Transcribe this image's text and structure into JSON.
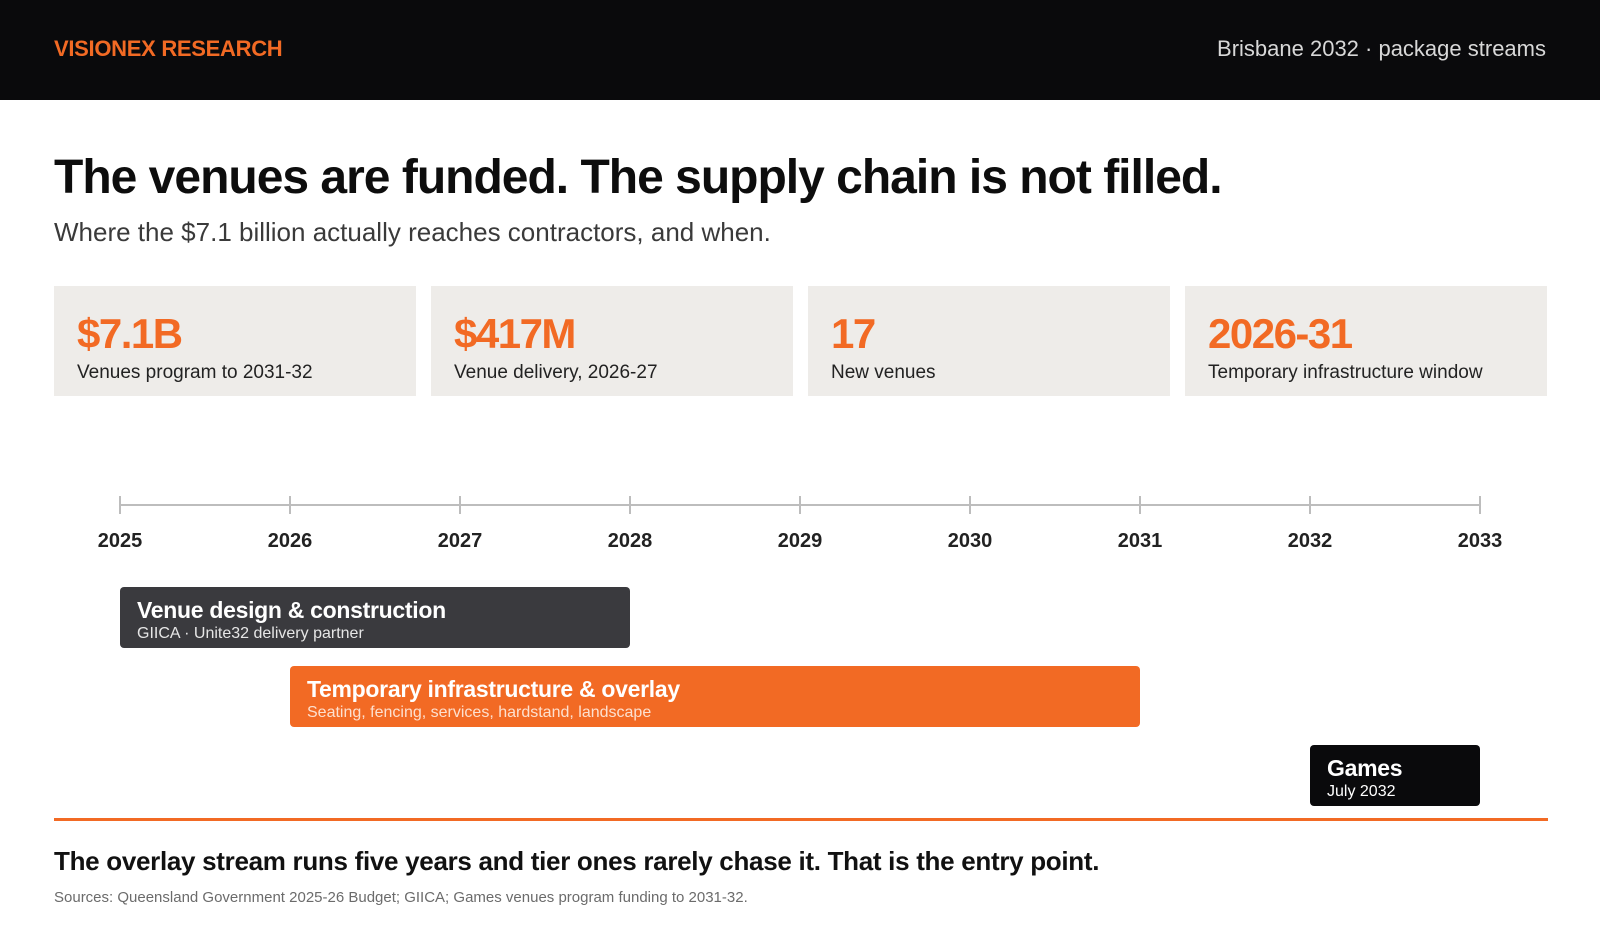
{
  "header": {
    "brand": "VISIONEX RESEARCH",
    "context": "Brisbane 2032 · package streams"
  },
  "title": "The venues are funded. The supply chain is not filled.",
  "subtitle": "Where the $7.1 billion actually reaches contractors, and when.",
  "stats": [
    {
      "value": "$7.1B",
      "label": "Venues program to 2031-32"
    },
    {
      "value": "$417M",
      "label": "Venue delivery, 2026-27"
    },
    {
      "value": "17",
      "label": "New venues"
    },
    {
      "value": "2026-31",
      "label": "Temporary infrastructure window"
    }
  ],
  "timeline": {
    "years": [
      "2025",
      "2026",
      "2027",
      "2028",
      "2029",
      "2030",
      "2031",
      "2032",
      "2033"
    ],
    "streams": [
      {
        "title": "Venue design & construction",
        "detail": "GIICA · Unite32 delivery partner",
        "start": 2025,
        "end": 2028,
        "color": "#3a3a3e",
        "detail_color": "#e6e6e6"
      },
      {
        "title": "Temporary infrastructure & overlay",
        "detail": "Seating, fencing, services, hardstand, landscape",
        "start": 2026,
        "end": 2031,
        "color": "#f26a24",
        "detail_color": "#fde0cf"
      },
      {
        "title": "Games",
        "detail": "July 2032",
        "start": 2032,
        "end": 2033,
        "color": "#0a0a0c",
        "detail_color": "#ffffff"
      }
    ]
  },
  "colors": {
    "accent": "#f26a24",
    "dark": "#0a0a0c",
    "card": "#eeece9"
  },
  "takeaway": "The overlay stream runs five years and tier ones rarely chase it. That is the entry point.",
  "sources": "Sources: Queensland Government 2025-26 Budget; GIICA; Games venues program funding to 2031-32."
}
